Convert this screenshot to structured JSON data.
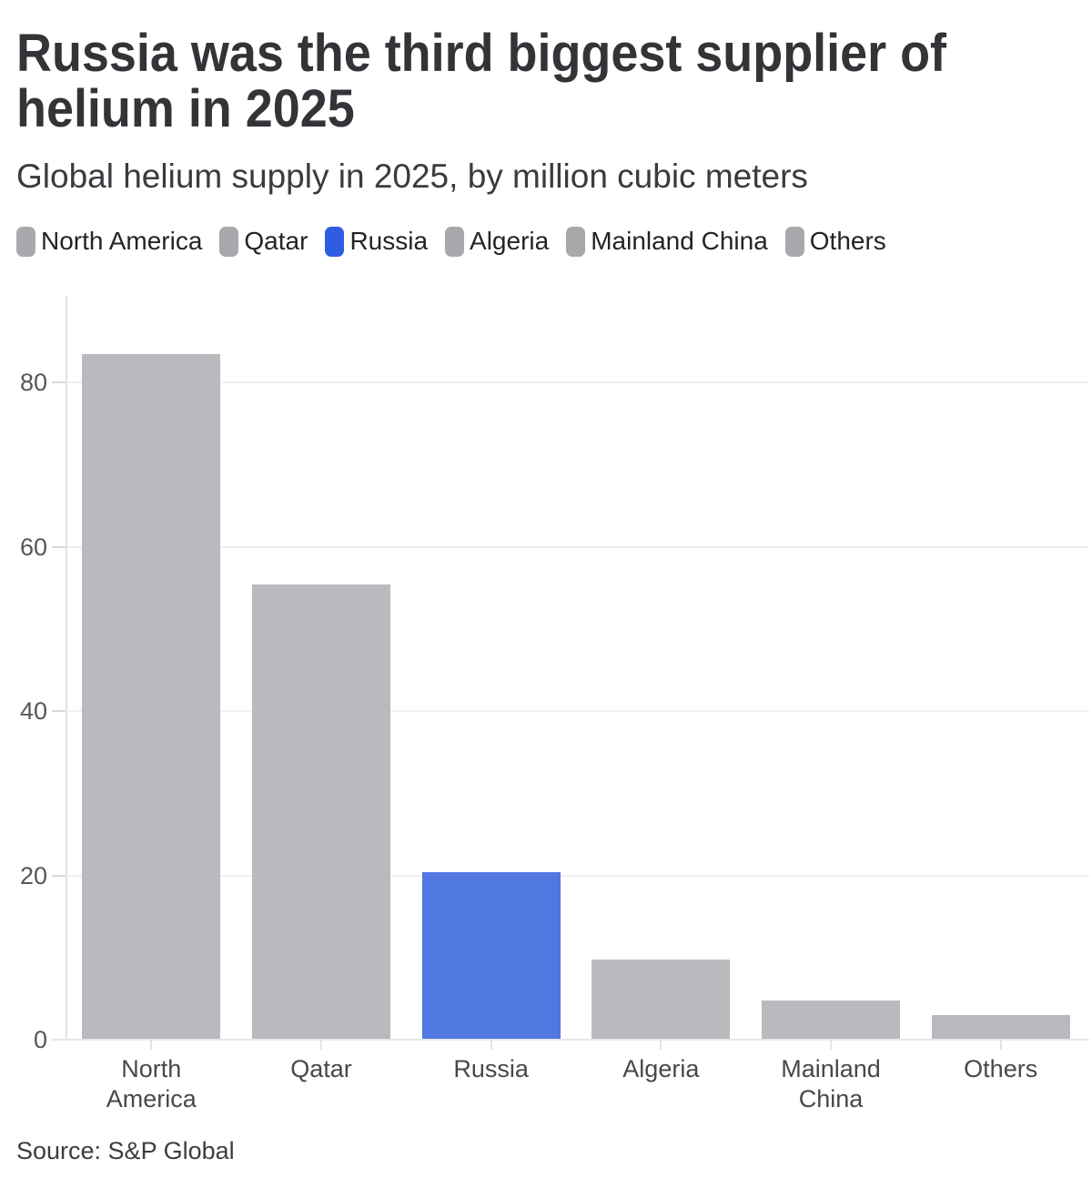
{
  "header": {
    "title": "Russia was the third biggest supplier of helium in 2025",
    "subtitle": "Global helium supply in 2025, by million cubic meters"
  },
  "legend": {
    "items": [
      {
        "label": "North America",
        "color": "#a7a9ad"
      },
      {
        "label": "Qatar",
        "color": "#a7a9ad"
      },
      {
        "label": "Russia",
        "color": "#2e5de4"
      },
      {
        "label": "Algeria",
        "color": "#a7a9ad"
      },
      {
        "label": "Mainland China",
        "color": "#a7a9ad"
      },
      {
        "label": "Others",
        "color": "#a7a9ad"
      }
    ]
  },
  "chart_data": {
    "type": "bar",
    "title": "Russia was the third biggest supplier of helium in 2025",
    "subtitle": "Global helium supply in 2025, by million cubic meters",
    "categories": [
      "North America",
      "Qatar",
      "Russia",
      "Algeria",
      "Mainland China",
      "Others"
    ],
    "values": [
      83.4,
      55.4,
      20.4,
      9.8,
      4.8,
      3.0
    ],
    "unit": "million cubic meters",
    "bar_colors": [
      "#b9babd",
      "#b9babd",
      "#5177e0",
      "#b9babd",
      "#b9babd",
      "#b9babd"
    ],
    "highlight_category": "Russia",
    "highlight_color": "#5177e0",
    "default_bar_color": "#b9babd",
    "xlabel": "",
    "ylabel": "",
    "ylim": [
      0,
      90
    ],
    "yticks": [
      0,
      20,
      40,
      60,
      80
    ],
    "grid": true,
    "legend_position": "top",
    "style": {
      "grid_color": "#f0f0f2",
      "tick_color": "#d9d9db",
      "axis_color": "#e2e2e4",
      "baseline_color": "#e7e7e9",
      "tick_label_color": "#56575c",
      "category_label_color": "#47484d"
    }
  },
  "source": {
    "text": "Source: S&P Global"
  }
}
